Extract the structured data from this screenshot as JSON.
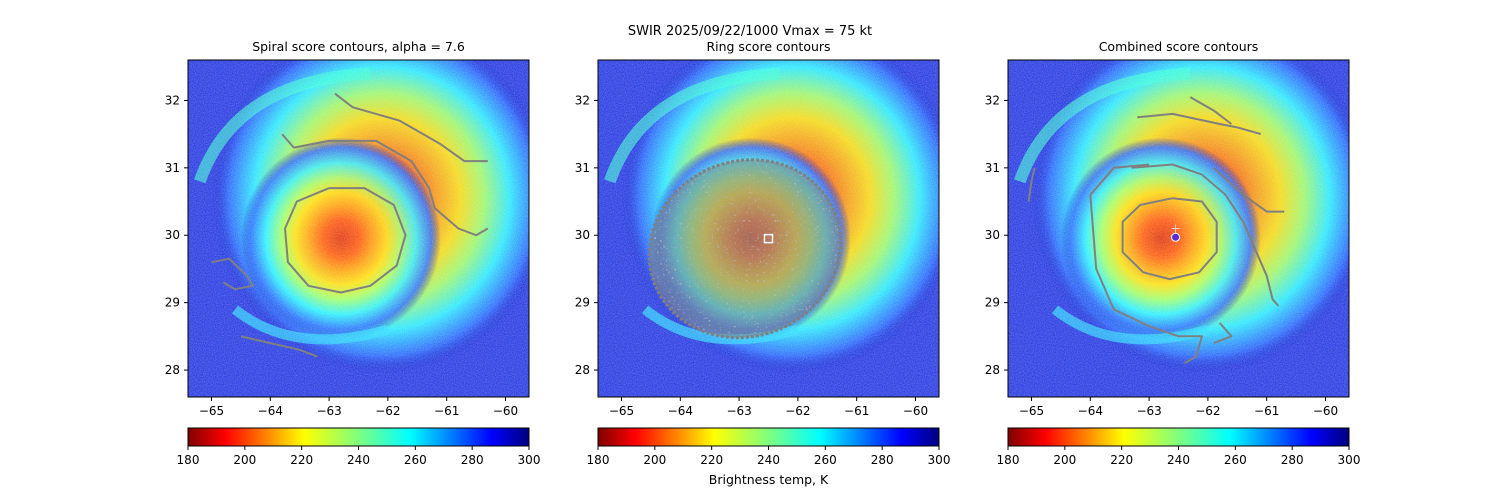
{
  "figure": {
    "suptitle": "SWIR  2025/09/22/1000    Vmax = 75 kt",
    "colors": {
      "contour": "#808080",
      "frame": "#000000",
      "marker_square": "#ffffff",
      "marker_circle": "#5b2bd6",
      "marker_cross": "#f0d0d0"
    }
  },
  "chart_data": [
    {
      "type": "heatmap",
      "title": "Spiral score contours, alpha =  7.6",
      "xlim": [
        -65.4,
        -59.6
      ],
      "ylim": [
        27.6,
        32.6
      ],
      "xticks": [
        -65,
        -64,
        -63,
        -62,
        -61,
        -60
      ],
      "yticks": [
        28,
        29,
        30,
        31,
        32
      ],
      "storm_center": [
        -62.6,
        29.95
      ],
      "contours": [
        [
          [
            -63.0,
            30.7
          ],
          [
            -62.4,
            30.7
          ],
          [
            -61.9,
            30.45
          ],
          [
            -61.7,
            30.0
          ],
          [
            -61.85,
            29.55
          ],
          [
            -62.3,
            29.25
          ],
          [
            -62.8,
            29.15
          ],
          [
            -63.35,
            29.25
          ],
          [
            -63.7,
            29.6
          ],
          [
            -63.75,
            30.1
          ],
          [
            -63.55,
            30.5
          ],
          [
            -63.0,
            30.7
          ]
        ],
        [
          [
            -63.8,
            31.5
          ],
          [
            -63.6,
            31.3
          ],
          [
            -63.0,
            31.4
          ],
          [
            -62.2,
            31.4
          ],
          [
            -61.6,
            31.1
          ],
          [
            -61.3,
            30.7
          ],
          [
            -61.2,
            30.4
          ],
          [
            -60.8,
            30.1
          ],
          [
            -60.5,
            30.0
          ],
          [
            -60.3,
            30.1
          ]
        ],
        [
          [
            -62.9,
            32.1
          ],
          [
            -62.6,
            31.9
          ],
          [
            -61.8,
            31.7
          ],
          [
            -61.1,
            31.35
          ],
          [
            -60.7,
            31.1
          ],
          [
            -60.3,
            31.1
          ]
        ],
        [
          [
            -65.0,
            29.6
          ],
          [
            -64.7,
            29.65
          ],
          [
            -64.4,
            29.4
          ],
          [
            -64.3,
            29.25
          ],
          [
            -64.6,
            29.2
          ],
          [
            -64.8,
            29.3
          ]
        ],
        [
          [
            -64.5,
            28.5
          ],
          [
            -64.0,
            28.4
          ],
          [
            -63.5,
            28.3
          ],
          [
            -63.2,
            28.2
          ]
        ]
      ],
      "colorbar": {
        "ticks": [
          180,
          200,
          220,
          240,
          260,
          280,
          300
        ],
        "range": [
          180,
          300
        ],
        "colormap": "jet_r",
        "label": ""
      },
      "markers": []
    },
    {
      "type": "heatmap",
      "title": "Ring score contours",
      "xlim": [
        -65.4,
        -59.6
      ],
      "ylim": [
        27.6,
        32.6
      ],
      "xticks": [
        -65,
        -64,
        -63,
        -62,
        -61,
        -60
      ],
      "yticks": [
        28,
        29,
        30,
        31,
        32
      ],
      "storm_center": [
        -62.6,
        29.95
      ],
      "contours": [],
      "ring_region": {
        "center": [
          -62.9,
          29.8
        ],
        "rx_deg": 1.65,
        "ry_deg": 1.3,
        "rotation_deg": -22,
        "style": "dense speckle"
      },
      "colorbar": {
        "ticks": [
          180,
          200,
          220,
          240,
          260,
          280,
          300
        ],
        "range": [
          180,
          300
        ],
        "colormap": "jet_r",
        "label": "Brightness temp, K"
      },
      "markers": [
        {
          "kind": "square",
          "x": -62.5,
          "y": 29.95
        }
      ]
    },
    {
      "type": "heatmap",
      "title": "Combined score contours",
      "xlim": [
        -65.4,
        -59.6
      ],
      "ylim": [
        27.6,
        32.6
      ],
      "xticks": [
        -65,
        -64,
        -63,
        -62,
        -61,
        -60
      ],
      "yticks": [
        28,
        29,
        30,
        31,
        32
      ],
      "storm_center": [
        -62.6,
        29.95
      ],
      "contours": [
        [
          [
            -62.6,
            30.55
          ],
          [
            -62.1,
            30.5
          ],
          [
            -61.85,
            30.2
          ],
          [
            -61.85,
            29.75
          ],
          [
            -62.15,
            29.45
          ],
          [
            -62.65,
            29.35
          ],
          [
            -63.1,
            29.45
          ],
          [
            -63.45,
            29.75
          ],
          [
            -63.45,
            30.2
          ],
          [
            -63.15,
            30.45
          ],
          [
            -62.6,
            30.55
          ]
        ],
        [
          [
            -63.3,
            31.0
          ],
          [
            -62.6,
            31.05
          ],
          [
            -62.1,
            30.9
          ],
          [
            -61.7,
            30.6
          ],
          [
            -61.4,
            30.2
          ],
          [
            -61.2,
            29.8
          ],
          [
            -61.0,
            29.4
          ],
          [
            -60.9,
            29.05
          ],
          [
            -60.8,
            28.95
          ]
        ],
        [
          [
            -64.0,
            30.6
          ],
          [
            -63.6,
            31.0
          ],
          [
            -63.0,
            31.05
          ]
        ],
        [
          [
            -64.0,
            30.6
          ],
          [
            -63.9,
            29.5
          ],
          [
            -63.6,
            28.9
          ],
          [
            -63.0,
            28.65
          ],
          [
            -62.5,
            28.5
          ],
          [
            -62.1,
            28.5
          ],
          [
            -62.2,
            28.2
          ],
          [
            -62.4,
            28.1
          ]
        ],
        [
          [
            -63.2,
            31.75
          ],
          [
            -62.6,
            31.8
          ],
          [
            -61.8,
            31.65
          ],
          [
            -61.5,
            31.6
          ],
          [
            -61.1,
            31.5
          ]
        ],
        [
          [
            -62.3,
            32.05
          ],
          [
            -61.9,
            31.85
          ],
          [
            -61.6,
            31.65
          ]
        ],
        [
          [
            -61.9,
            31.0
          ],
          [
            -61.4,
            30.6
          ],
          [
            -61.0,
            30.35
          ],
          [
            -60.7,
            30.35
          ]
        ],
        [
          [
            -64.95,
            31.0
          ],
          [
            -65.0,
            30.8
          ],
          [
            -65.05,
            30.5
          ]
        ],
        [
          [
            -61.9,
            28.4
          ],
          [
            -61.6,
            28.5
          ],
          [
            -61.8,
            28.7
          ]
        ]
      ],
      "colorbar": {
        "ticks": [
          180,
          200,
          220,
          240,
          260,
          280,
          300
        ],
        "range": [
          180,
          300
        ],
        "colormap": "jet_r",
        "label": ""
      },
      "markers": [
        {
          "kind": "circle",
          "x": -62.55,
          "y": 29.97
        },
        {
          "kind": "cross",
          "x": -62.55,
          "y": 30.1
        }
      ]
    }
  ]
}
